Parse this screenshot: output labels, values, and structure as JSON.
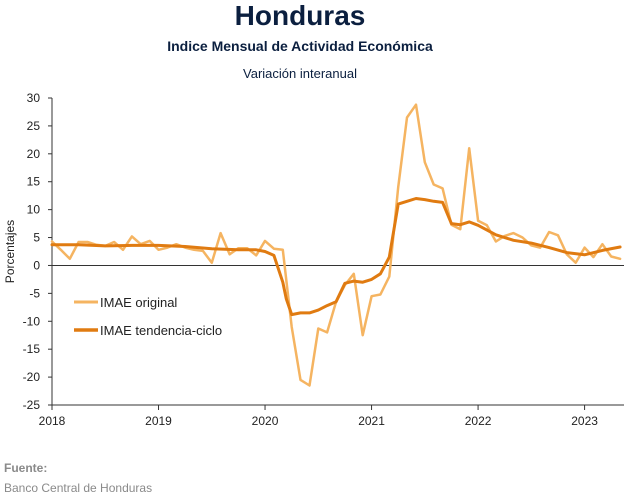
{
  "header": {
    "title": "Honduras",
    "subtitle": "Indice Mensual de  Actividad Económica",
    "subtitle2": "Variación interanual"
  },
  "source": {
    "label": "Fuente:",
    "text": "Banco Central de Honduras"
  },
  "chart_data": {
    "type": "line",
    "title": "Honduras",
    "subtitle": "Indice Mensual de  Actividad Económica — Variación interanual",
    "ylabel": "Porcentajes",
    "xlabel": "",
    "ylim": [
      -25,
      30
    ],
    "yticks": [
      30,
      25,
      20,
      15,
      10,
      5,
      0,
      -5,
      -10,
      -15,
      -20,
      -25
    ],
    "xlim": [
      2018.0,
      2023.37
    ],
    "xticks": [
      2018,
      2019,
      2020,
      2021,
      2022,
      2023
    ],
    "grid": false,
    "legend_position": "left-middle",
    "series": [
      {
        "name": "IMAE original",
        "color": "#f5b461",
        "x": [
          2018.0,
          2018.083,
          2018.167,
          2018.25,
          2018.333,
          2018.417,
          2018.5,
          2018.583,
          2018.667,
          2018.75,
          2018.833,
          2018.917,
          2019.0,
          2019.083,
          2019.167,
          2019.25,
          2019.333,
          2019.417,
          2019.5,
          2019.583,
          2019.667,
          2019.75,
          2019.833,
          2019.917,
          2020.0,
          2020.083,
          2020.167,
          2020.25,
          2020.333,
          2020.417,
          2020.5,
          2020.583,
          2020.667,
          2020.75,
          2020.833,
          2020.917,
          2021.0,
          2021.083,
          2021.167,
          2021.25,
          2021.333,
          2021.417,
          2021.5,
          2021.583,
          2021.667,
          2021.75,
          2021.833,
          2021.917,
          2022.0,
          2022.083,
          2022.167,
          2022.25,
          2022.333,
          2022.417,
          2022.5,
          2022.583,
          2022.667,
          2022.75,
          2022.833,
          2022.917,
          2023.0,
          2023.083,
          2023.167,
          2023.25,
          2023.333
        ],
        "values": [
          4.3,
          2.8,
          1.2,
          4.2,
          4.2,
          3.7,
          3.5,
          4.2,
          2.8,
          5.2,
          3.8,
          4.4,
          2.8,
          3.2,
          3.8,
          3.2,
          2.8,
          2.6,
          0.5,
          5.8,
          2.0,
          3.1,
          3.1,
          1.8,
          4.4,
          3.0,
          2.8,
          -11.0,
          -20.5,
          -21.5,
          -11.3,
          -12.0,
          -6.5,
          -3.5,
          -1.5,
          -12.5,
          -5.5,
          -5.2,
          -2.0,
          14.0,
          26.5,
          28.8,
          18.5,
          14.5,
          13.8,
          7.3,
          6.5,
          21.0,
          8.0,
          7.2,
          4.3,
          5.3,
          5.8,
          5.0,
          3.6,
          3.2,
          6.0,
          5.4,
          2.0,
          0.5,
          3.2,
          1.5,
          3.8,
          1.6,
          1.2
        ]
      },
      {
        "name": "IMAE tendencia-ciclo",
        "color": "#e07b11",
        "x": [
          2018.0,
          2018.25,
          2018.5,
          2018.75,
          2019.0,
          2019.25,
          2019.5,
          2019.75,
          2019.917,
          2020.0,
          2020.083,
          2020.167,
          2020.2,
          2020.25,
          2020.333,
          2020.417,
          2020.5,
          2020.583,
          2020.667,
          2020.75,
          2020.833,
          2020.917,
          2021.0,
          2021.083,
          2021.167,
          2021.25,
          2021.333,
          2021.417,
          2021.5,
          2021.583,
          2021.667,
          2021.75,
          2021.833,
          2021.917,
          2022.0,
          2022.167,
          2022.333,
          2022.5,
          2022.667,
          2022.833,
          2023.0,
          2023.167,
          2023.333
        ],
        "values": [
          3.7,
          3.7,
          3.5,
          3.6,
          3.6,
          3.4,
          3.0,
          2.8,
          2.8,
          2.5,
          1.8,
          -3.0,
          -6.0,
          -8.8,
          -8.5,
          -8.5,
          -8.0,
          -7.2,
          -6.5,
          -3.2,
          -2.8,
          -3.0,
          -2.5,
          -1.5,
          1.5,
          11.0,
          11.5,
          12.0,
          11.8,
          11.5,
          11.3,
          7.5,
          7.3,
          7.8,
          7.2,
          5.5,
          4.5,
          4.0,
          3.2,
          2.3,
          1.9,
          2.7,
          3.3
        ]
      }
    ]
  }
}
